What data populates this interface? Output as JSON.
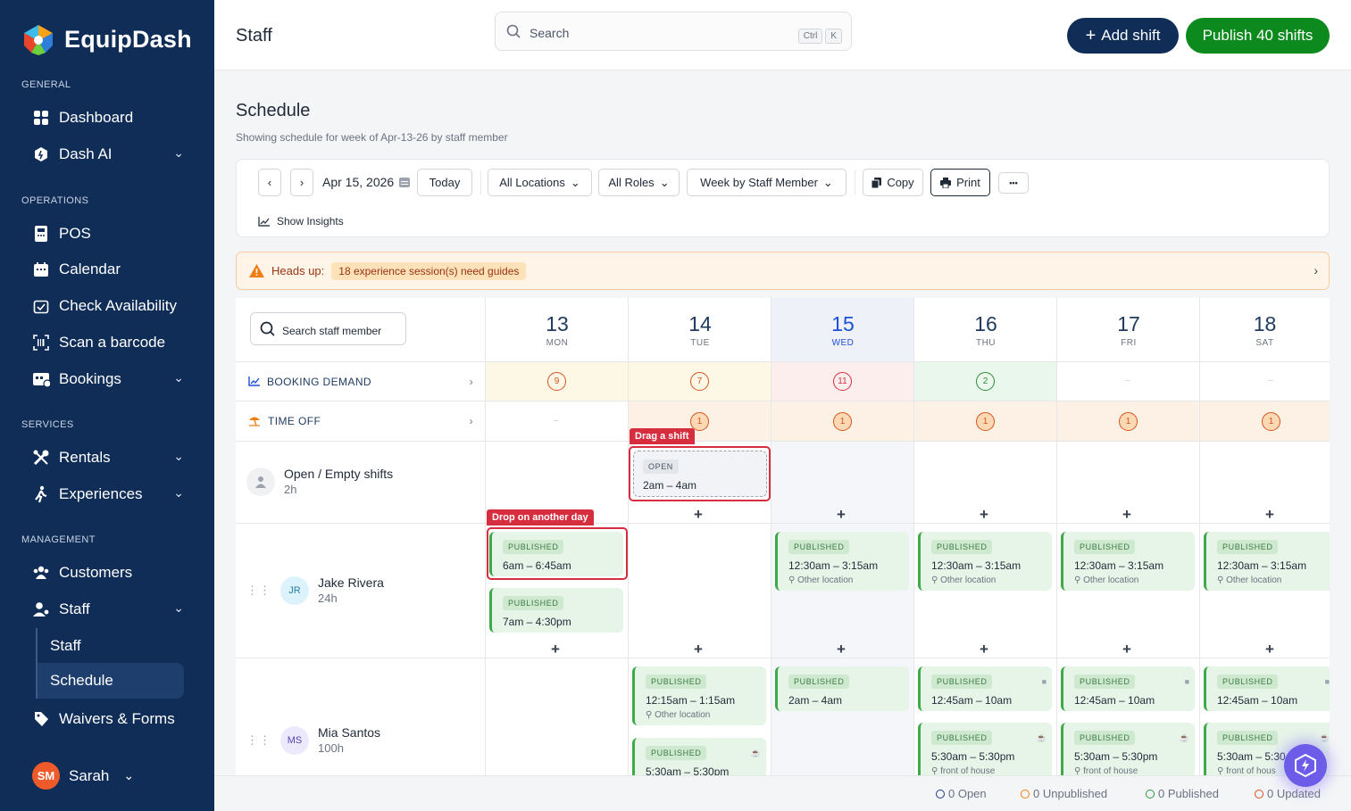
{
  "app": {
    "brand": "EquipDash"
  },
  "sidebar": {
    "sections": {
      "general": "GENERAL",
      "operations": "OPERATIONS",
      "services": "SERVICES",
      "management": "MANAGEMENT"
    },
    "items": {
      "dashboard": "Dashboard",
      "dash_ai": "Dash AI",
      "pos": "POS",
      "calendar": "Calendar",
      "check_availability": "Check Availability",
      "scan_barcode": "Scan a barcode",
      "bookings": "Bookings",
      "rentals": "Rentals",
      "experiences": "Experiences",
      "customers": "Customers",
      "staff": "Staff",
      "staff_sub": "Staff",
      "schedule_sub": "Schedule",
      "waivers": "Waivers & Forms"
    },
    "user": {
      "initials": "SM",
      "name": "Sarah"
    }
  },
  "topbar": {
    "title": "Staff",
    "search_placeholder": "Search",
    "kbd_ctrl": "Ctrl",
    "kbd_k": "K",
    "add_shift": "Add shift",
    "publish": "Publish 40 shifts"
  },
  "schedule": {
    "title": "Schedule",
    "subtitle": "Showing schedule for week of Apr-13-26 by staff member",
    "toolbar": {
      "date": "Apr 15, 2026",
      "today": "Today",
      "locations": "All Locations",
      "roles": "All Roles",
      "view": "Week by Staff Member",
      "copy": "Copy",
      "print": "Print",
      "more": "•••",
      "insights": "Show Insights"
    },
    "headsup": {
      "label": "Heads up:",
      "message": "18 experience session(s) need guides"
    },
    "search_staff": "Search staff member",
    "days": [
      {
        "num": "13",
        "dow": "MON"
      },
      {
        "num": "14",
        "dow": "TUE"
      },
      {
        "num": "15",
        "dow": "WED"
      },
      {
        "num": "16",
        "dow": "THU"
      },
      {
        "num": "17",
        "dow": "FRI"
      },
      {
        "num": "18",
        "dow": "SAT"
      }
    ],
    "booking_demand": {
      "label": "BOOKING DEMAND",
      "values": [
        "9",
        "7",
        "11",
        "2",
        "–",
        "–"
      ]
    },
    "time_off": {
      "label": "TIME OFF",
      "values": [
        "–",
        "1",
        "1",
        "1",
        "1",
        "1"
      ]
    },
    "open_row": {
      "name": "Open / Empty shifts",
      "hours": "2h",
      "shift_status": "OPEN",
      "shift_time": "2am – 4am",
      "drag_tag": "Drag a shift"
    },
    "drop_tag": "Drop on another day",
    "status_published": "PUBLISHED",
    "jake": {
      "initials": "JR",
      "name": "Jake Rivera",
      "hours": "24h",
      "shifts": [
        "6am – 6:45am",
        "7am – 4:30pm",
        "12:30am – 3:15am",
        "12:30am – 3:15am",
        "12:30am – 3:15am",
        "12:30am – 3:15am"
      ],
      "location": "Other location"
    },
    "mia": {
      "initials": "MS",
      "name": "Mia Santos",
      "hours": "100h",
      "shifts": [
        "12:15am – 1:15am",
        "5:30am – 5:30pm",
        "2am – 4am",
        "12:45am – 10am",
        "5:30am – 5:30pm",
        "12:45am – 10am",
        "5:30am – 5:30pm",
        "12:45am – 10am",
        "5:30am – 5:30"
      ],
      "other_location": "Other location",
      "front_location": "front of house",
      "front_location_cut": "front of hous"
    }
  },
  "footer": {
    "open": "0 Open",
    "unpublished": "0 Unpublished",
    "published": "0 Published",
    "updated": "0 Updated"
  },
  "colors": {
    "sidebar": "#0f2d57",
    "publish": "#0c8a1d",
    "highlight": "#d62d3f"
  }
}
